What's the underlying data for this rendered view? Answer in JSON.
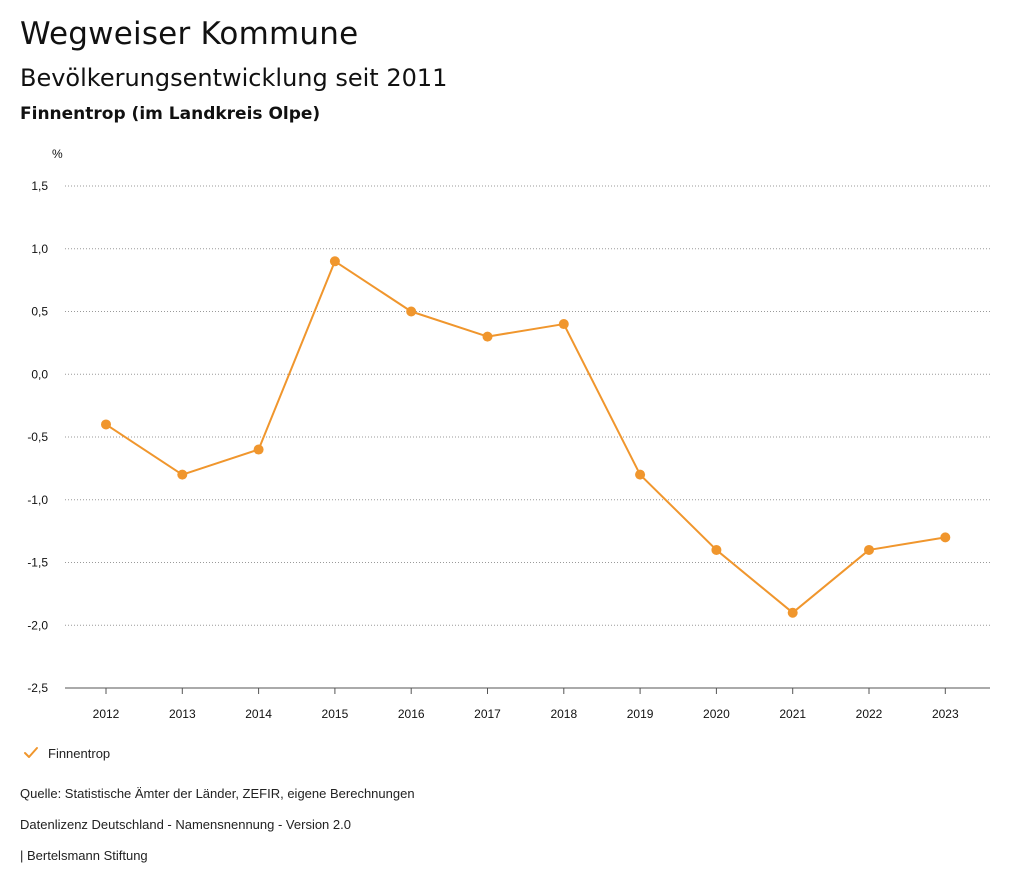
{
  "header": {
    "title": "Wegweiser Kommune",
    "subtitle": "Bevölkerungsentwicklung seit 2011",
    "region": "Finnentrop (im Landkreis Olpe)"
  },
  "chart_data": {
    "type": "line",
    "unit": "%",
    "x": [
      "2012",
      "2013",
      "2014",
      "2015",
      "2016",
      "2017",
      "2018",
      "2019",
      "2020",
      "2021",
      "2022",
      "2023"
    ],
    "series": [
      {
        "name": "Finnentrop",
        "color": "#F0962D",
        "values": [
          -0.4,
          -0.8,
          -0.6,
          0.9,
          0.5,
          0.3,
          0.4,
          -0.8,
          -1.4,
          -1.9,
          -1.4,
          -1.3
        ]
      }
    ],
    "ylim": [
      -2.5,
      1.5
    ],
    "yticks": [
      1.5,
      1.0,
      0.5,
      0.0,
      -0.5,
      -1.0,
      -1.5,
      -2.0,
      -2.5
    ],
    "ytick_labels": [
      "1,5",
      "1,0",
      "0,5",
      "0,0",
      "-0,5",
      "-1,0",
      "-1,5",
      "-2,0",
      "-2,5"
    ],
    "grid": true,
    "legend_position": "bottom-left"
  },
  "legend": {
    "label": "Finnentrop"
  },
  "footer": {
    "source": "Quelle: Statistische Ämter der Länder, ZEFIR, eigene Berechnungen",
    "license": "Datenlizenz Deutschland - Namensnennung - Version 2.0",
    "publisher": "| Bertelsmann Stiftung"
  }
}
